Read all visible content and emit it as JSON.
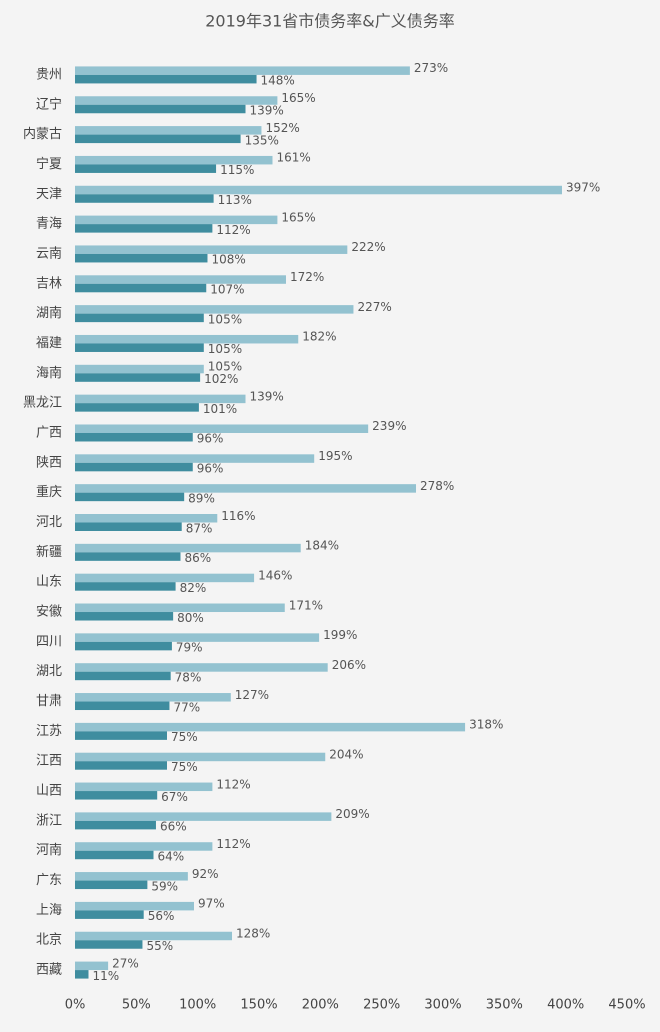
{
  "chart_data": {
    "type": "hbar",
    "title": "2019年31省市债务率&广义债务率",
    "categories": [
      "贵州",
      "辽宁",
      "内蒙古",
      "宁夏",
      "天津",
      "青海",
      "云南",
      "吉林",
      "湖南",
      "福建",
      "海南",
      "黑龙江",
      "广西",
      "陕西",
      "重庆",
      "河北",
      "新疆",
      "山东",
      "安徽",
      "四川",
      "湖北",
      "甘肃",
      "江苏",
      "江西",
      "山西",
      "浙江",
      "河南",
      "广东",
      "上海",
      "北京",
      "西藏"
    ],
    "series": [
      {
        "color": "#93c2d0",
        "values": [
          273,
          165,
          152,
          161,
          397,
          165,
          222,
          172,
          227,
          182,
          105,
          139,
          239,
          195,
          278,
          116,
          184,
          146,
          171,
          199,
          206,
          127,
          318,
          204,
          112,
          209,
          112,
          92,
          97,
          128,
          27
        ],
        "value_labels": [
          "273%",
          "165%",
          "152%",
          "161%",
          "397%",
          "165%",
          "222%",
          "172%",
          "227%",
          "182%",
          "105%",
          "139%",
          "239%",
          "195%",
          "278%",
          "116%",
          "184%",
          "146%",
          "171%",
          "199%",
          "206%",
          "127%",
          "318%",
          "204%",
          "112%",
          "209%",
          "112%",
          "92%",
          "97%",
          "128%",
          "27%"
        ]
      },
      {
        "color": "#3f8d9f",
        "values": [
          148,
          139,
          135,
          115,
          113,
          112,
          108,
          107,
          105,
          105,
          102,
          101,
          96,
          96,
          89,
          87,
          86,
          82,
          80,
          79,
          78,
          77,
          75,
          75,
          67,
          66,
          64,
          59,
          56,
          55,
          11
        ],
        "value_labels": [
          "148%",
          "139%",
          "135%",
          "115%",
          "113%",
          "112%",
          "108%",
          "107%",
          "105%",
          "105%",
          "102%",
          "101%",
          "96%",
          "96%",
          "89%",
          "87%",
          "86%",
          "82%",
          "80%",
          "79%",
          "78%",
          "77%",
          "75%",
          "75%",
          "67%",
          "66%",
          "64%",
          "59%",
          "56%",
          "55%",
          "11%"
        ]
      }
    ],
    "xlim": [
      0,
      450
    ],
    "xticks": [
      {
        "value": 0,
        "label": "0%"
      },
      {
        "value": 50,
        "label": "50%"
      },
      {
        "value": 100,
        "label": "100%"
      },
      {
        "value": 150,
        "label": "150%"
      },
      {
        "value": 200,
        "label": "200%"
      },
      {
        "value": 250,
        "label": "250%"
      },
      {
        "value": 300,
        "label": "300%"
      },
      {
        "value": 350,
        "label": "350%"
      },
      {
        "value": 400,
        "label": "400%"
      },
      {
        "value": 450,
        "label": "450%"
      }
    ]
  }
}
